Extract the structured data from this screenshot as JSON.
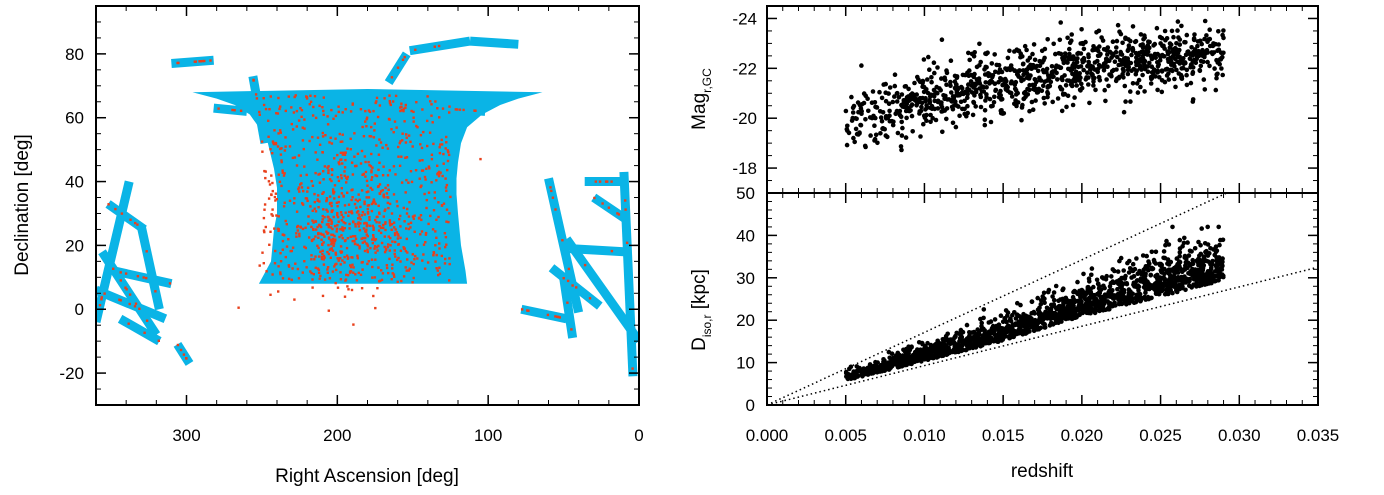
{
  "chart_data": [
    {
      "type": "scatter",
      "panel": "sky-map",
      "xlabel": "Right Ascension [deg]",
      "ylabel": "Declination [deg]",
      "xlim": [
        360,
        0
      ],
      "ylim": [
        -30,
        95
      ],
      "xticks": [
        300,
        200,
        100,
        0
      ],
      "yticks": [
        -20,
        0,
        20,
        40,
        60,
        80
      ],
      "colors": {
        "footprint": "#0ab4e6",
        "points": "#e8401c"
      },
      "footprint": {
        "main_region": {
          "ra": [
            252,
            244,
            242,
            240,
            240,
            242,
            246,
            252,
            258,
            268,
            280,
            296,
            180,
            64,
            80,
            92,
            104,
            114,
            118,
            120,
            121,
            121,
            120,
            118,
            115,
            114
          ],
          "dec": [
            8,
            15,
            25,
            30,
            38,
            44,
            52,
            57,
            61,
            64,
            66,
            68,
            69,
            68,
            66,
            64,
            61,
            57,
            52,
            46,
            41,
            36,
            30,
            20,
            12,
            8
          ],
          "note": "approximate outline"
        },
        "stripes": [
          {
            "ra": [
              310,
              282
            ],
            "dec": [
              77,
              78
            ]
          },
          {
            "ra": [
              240,
              236
            ],
            "dec": [
              60,
              42
            ]
          },
          {
            "ra": [
              256,
              248
            ],
            "dec": [
              73,
              52
            ]
          },
          {
            "ra": [
              282,
              260
            ],
            "dec": [
              63,
              62
            ]
          },
          {
            "ra": [
              166,
              154
            ],
            "dec": [
              71,
              80
            ]
          },
          {
            "ra": [
              152,
              112
            ],
            "dec": [
              81,
              84
            ]
          },
          {
            "ra": [
              112,
              80
            ],
            "dec": [
              84,
              83
            ]
          },
          {
            "ra": [
              134,
              102
            ],
            "dec": [
              63,
              62
            ]
          },
          {
            "ra": [
              360,
              338
            ],
            "dec": [
              -4,
              40
            ]
          },
          {
            "ra": [
              356,
              320
            ],
            "dec": [
              18,
              -8
            ]
          },
          {
            "ra": [
              352,
              328
            ],
            "dec": [
              33,
              25
            ]
          },
          {
            "ra": [
              348,
              310
            ],
            "dec": [
              12,
              8
            ]
          },
          {
            "ra": [
              360,
              314
            ],
            "dec": [
              6,
              -3
            ]
          },
          {
            "ra": [
              344,
              318
            ],
            "dec": [
              -3,
              -10
            ]
          },
          {
            "ra": [
              330,
              318
            ],
            "dec": [
              26,
              0
            ]
          },
          {
            "ra": [
              306,
              298
            ],
            "dec": [
              -11,
              -17
            ]
          },
          {
            "ra": [
              60,
              40
            ],
            "dec": [
              41,
              -1
            ]
          },
          {
            "ra": [
              48,
              0
            ],
            "dec": [
              22,
              -10
            ]
          },
          {
            "ra": [
              10,
              4
            ],
            "dec": [
              43,
              -21
            ]
          },
          {
            "ra": [
              30,
              8
            ],
            "dec": [
              35,
              28
            ]
          },
          {
            "ra": [
              58,
              26
            ],
            "dec": [
              13,
              1
            ]
          },
          {
            "ra": [
              46,
              10
            ],
            "dec": [
              19,
              18
            ]
          },
          {
            "ra": [
              78,
              48
            ],
            "dec": [
              0,
              -3
            ]
          },
          {
            "ra": [
              36,
              12
            ],
            "dec": [
              40,
              40
            ]
          },
          {
            "ra": [
              50,
              44
            ],
            "dec": [
              10,
              -9
            ]
          }
        ]
      },
      "points": {
        "count": 1120,
        "ra_range": [
          360,
          0
        ],
        "dec_range": [
          -22,
          83
        ],
        "note": "red dots mostly within the cyan main region, RA ~115–255, Dec ~8–68; density peak around RA 180–200, Dec 20–30"
      }
    },
    {
      "type": "scatter",
      "panel": "magnitude-vs-redshift",
      "xlabel": "",
      "ylabel": "Mag r,GC",
      "ylabel_parts": {
        "main": "Mag",
        "sub": "r,GC"
      },
      "xlim": [
        0.0,
        0.035
      ],
      "ylim": [
        -17,
        -24.5
      ],
      "yticks": [
        -18,
        -20,
        -22,
        -24
      ],
      "points": {
        "count": 1060,
        "z_range": [
          0.005,
          0.029
        ],
        "mag_trend": {
          "0.005": -19.8,
          "0.01": -20.8,
          "0.015": -21.4,
          "0.02": -22.0,
          "0.025": -22.4,
          "0.029": -22.6
        },
        "mag_range": [
          -17.5,
          -23.9
        ]
      }
    },
    {
      "type": "scatter",
      "panel": "isophotal-diameter-vs-redshift",
      "xlabel": "redshift",
      "ylabel": "D iso,r [kpc]",
      "ylabel_parts": {
        "main": "D",
        "sub": "iso,r",
        "rest": " [kpc]"
      },
      "xlim": [
        0.0,
        0.035
      ],
      "ylim": [
        0,
        50
      ],
      "xticks": [
        "0.000",
        "0.005",
        "0.010",
        "0.015",
        "0.020",
        "0.025",
        "0.030",
        "0.035"
      ],
      "yticks": [
        0,
        10,
        20,
        30,
        40,
        50
      ],
      "points": {
        "count": 1600,
        "z_range": [
          0.005,
          0.029
        ],
        "diameter_trend": {
          "0.005": 6,
          "0.01": 11,
          "0.015": 16,
          "0.02": 22,
          "0.025": 27,
          "0.029": 31
        },
        "diameter_range": [
          4,
          42
        ]
      },
      "reference_lines": [
        {
          "style": "dotted",
          "z": [
            0.0,
            0.0292
          ],
          "d": [
            0.0,
            50.0
          ]
        },
        {
          "style": "dotted",
          "z": [
            0.0,
            0.035
          ],
          "d": [
            0.0,
            32.5
          ]
        }
      ]
    }
  ]
}
